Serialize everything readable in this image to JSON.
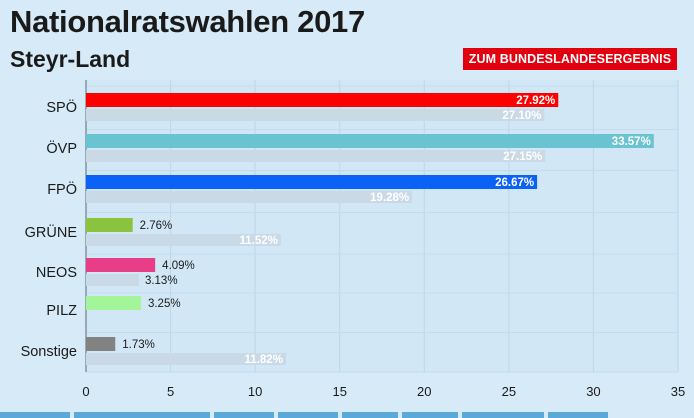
{
  "header": {
    "title": "Nationalratswahlen 2017",
    "subtitle": "Steyr-Land",
    "button_label": "ZUM BUNDESLANDESERGEBNIS"
  },
  "chart_data": {
    "type": "bar",
    "orientation": "horizontal",
    "title": "Nationalratswahlen 2017",
    "subtitle": "Steyr-Land",
    "xlabel": "",
    "ylabel": "",
    "xlim": [
      0,
      35
    ],
    "x_ticks": [
      "0",
      "5",
      "10",
      "15",
      "20",
      "25",
      "30",
      "35"
    ],
    "categories": [
      "SPÖ",
      "ÖVP",
      "FPÖ",
      "GRÜNE",
      "NEOS",
      "PILZ",
      "Sonstige"
    ],
    "series": [
      {
        "name": "",
        "values": [
          27.92,
          33.57,
          26.67,
          2.76,
          4.09,
          3.25,
          1.73
        ],
        "labels": [
          "27.92%",
          "33.57%",
          "26.67%",
          "2.76%",
          "4.09%",
          "3.25%",
          "1.73%"
        ],
        "colors": [
          "#ff0000",
          "#69c3d0",
          "#0a63f5",
          "#8ac43f",
          "#e73e87",
          "#a3f59a",
          "#828282"
        ]
      },
      {
        "name": "",
        "values": [
          27.1,
          27.15,
          19.28,
          11.52,
          3.13,
          null,
          11.82
        ],
        "labels": [
          "27.10%",
          "27.15%",
          "19.28%",
          "11.52%",
          "3.13%",
          "",
          "11.82%"
        ],
        "color": "#c9d9e6"
      }
    ],
    "grid": true,
    "legend": "none"
  }
}
